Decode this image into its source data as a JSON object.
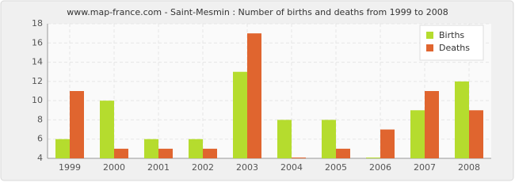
{
  "chart_data": {
    "type": "bar",
    "title": "www.map-france.com - Saint-Mesmin : Number of births and deaths from 1999 to 2008",
    "categories": [
      "1999",
      "2000",
      "2001",
      "2002",
      "2003",
      "2004",
      "2005",
      "2006",
      "2007",
      "2008"
    ],
    "series": [
      {
        "name": "Births",
        "color": "#b5dc2e",
        "values": [
          6,
          10,
          6,
          6,
          13,
          8,
          8,
          4,
          9,
          12
        ]
      },
      {
        "name": "Deaths",
        "color": "#e0652f",
        "values": [
          11,
          5,
          5,
          5,
          17,
          4,
          5,
          7,
          11,
          9
        ]
      }
    ],
    "ylim": [
      4,
      18
    ],
    "yticks": [
      4,
      6,
      8,
      10,
      12,
      14,
      16,
      18
    ],
    "grid": true,
    "legend": "upper right"
  }
}
